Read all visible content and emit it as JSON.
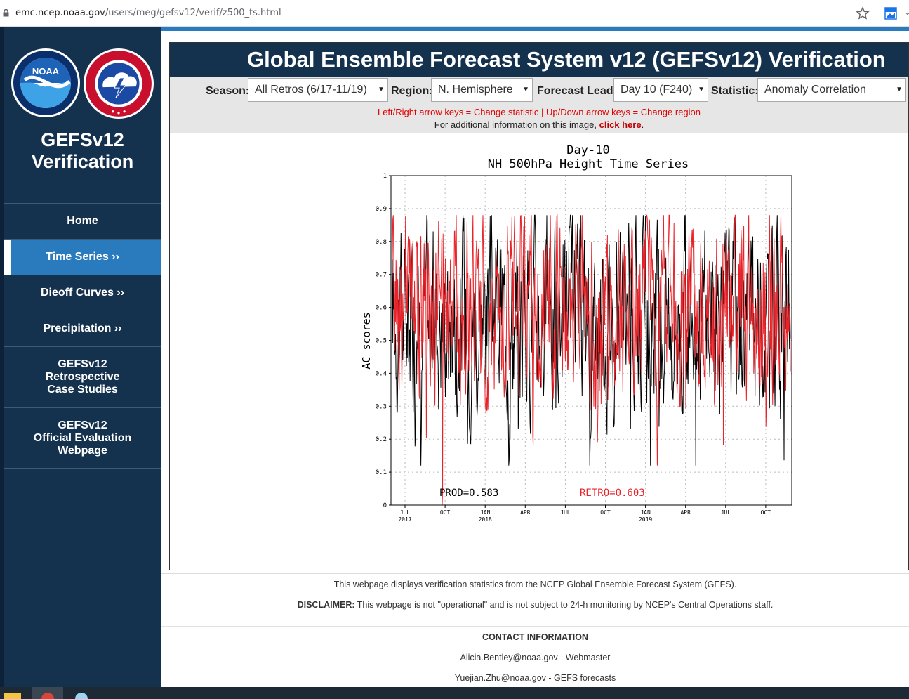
{
  "browser": {
    "url_host": "emc.ncep.noaa.gov",
    "url_path": "/users/meg/gefsv12/verif/z500_ts.html"
  },
  "sidebar": {
    "title_line1": "GEFSv12",
    "title_line2": "Verification",
    "noaa_logo_text": "NOAA",
    "nav": [
      {
        "label": "Home"
      },
      {
        "label": "Time Series ››"
      },
      {
        "label": "Dieoff Curves ››"
      },
      {
        "label": "Precipitation ››"
      },
      {
        "label_line1": "GEFSv12",
        "label_line2": "Retrospective",
        "label_line3": "Case Studies"
      },
      {
        "label_line1": "GEFSv12",
        "label_line2": "Official Evaluation",
        "label_line3": "Webpage"
      }
    ]
  },
  "header": {
    "title": "Global Ensemble Forecast System v12 (GEFSv12) Verification"
  },
  "controls": {
    "season_label": "Season:",
    "season_value": "All Retros (6/17-11/19)",
    "region_label": "Region:",
    "region_value": "N. Hemisphere",
    "lead_label": "Forecast Lead:",
    "lead_value": "Day 10 (F240)",
    "stat_label": "Statistic:",
    "stat_value": "Anomaly Correlation",
    "hint_keys": "Left/Right arrow keys = Change statistic  |  Up/Down arrow keys = Change region",
    "hint_info": "For additional information on this image, ",
    "hint_link": "click here",
    "hint_end": "."
  },
  "chart_data": {
    "type": "line",
    "title": "Day-10",
    "subtitle": "NH 500hPa Height Time Series",
    "ylabel": "AC scores",
    "ylim": [
      0,
      1
    ],
    "yticks": [
      "0",
      "0.1",
      "0.2",
      "0.3",
      "0.4",
      "0.5",
      "0.6",
      "0.7",
      "0.8",
      "0.9",
      "1"
    ],
    "xticks": [
      {
        "label": "JUL",
        "sub": "2017"
      },
      {
        "label": "OCT",
        "sub": ""
      },
      {
        "label": "JAN",
        "sub": "2018"
      },
      {
        "label": "APR",
        "sub": ""
      },
      {
        "label": "JUL",
        "sub": ""
      },
      {
        "label": "OCT",
        "sub": ""
      },
      {
        "label": "JAN",
        "sub": "2019"
      },
      {
        "label": "APR",
        "sub": ""
      },
      {
        "label": "JUL",
        "sub": ""
      },
      {
        "label": "OCT",
        "sub": ""
      }
    ],
    "grid": true,
    "series": [
      {
        "name": "PROD",
        "color": "#000000",
        "mean_label": "PROD=0.583"
      },
      {
        "name": "RETRO",
        "color": "#e8232a",
        "mean_label": "RETRO=0.603"
      }
    ]
  },
  "footer": {
    "line1": "This webpage displays verification statistics from the NCEP Global Ensemble Forecast System (GEFS).",
    "disclaimer_label": "DISCLAIMER:",
    "disclaimer_text": " This webpage is not \"operational\" and is not subject to 24-h monitoring by NCEP's Central Operations staff.",
    "contact_heading": "CONTACT INFORMATION",
    "contact1": "Alicia.Bentley@noaa.gov - Webmaster",
    "contact2": "Yuejian.Zhu@noaa.gov - GEFS forecasts"
  }
}
